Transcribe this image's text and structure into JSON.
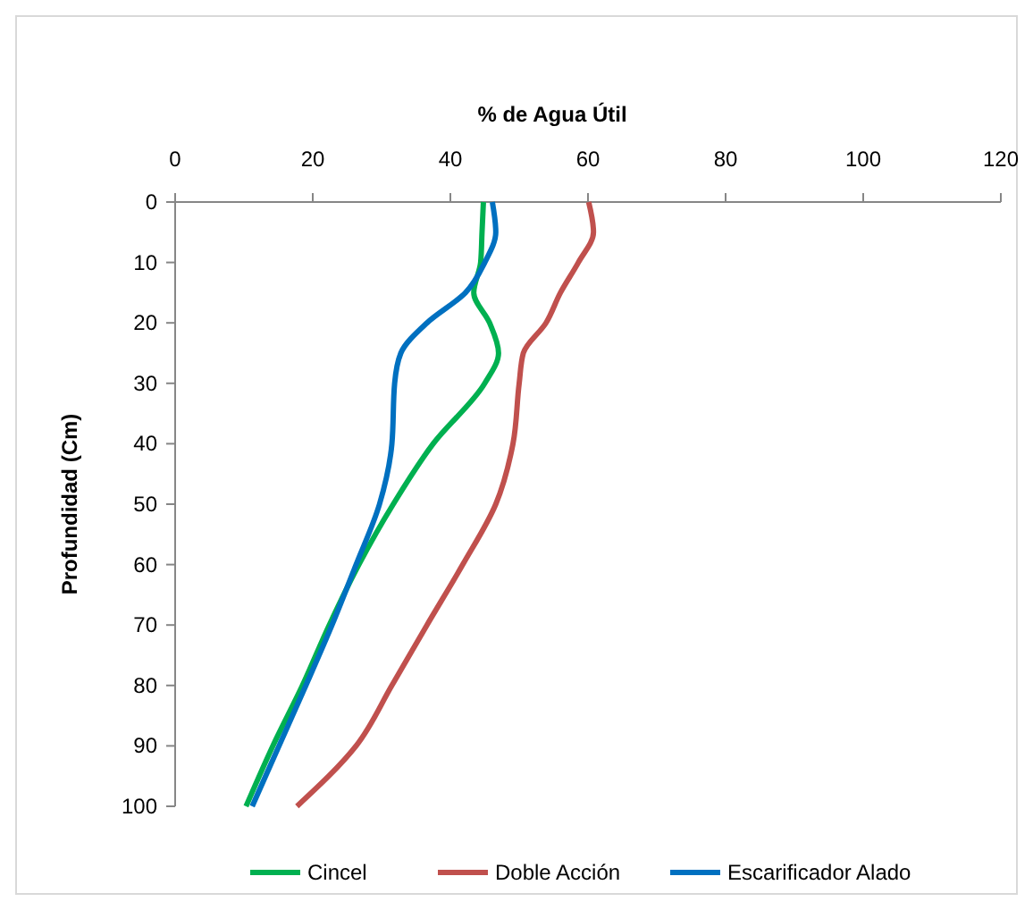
{
  "chart_data": {
    "type": "line",
    "orientation": "horizontal",
    "xlabel": "% de Agua Útil",
    "ylabel": "Profundidad (Cm)",
    "x": [
      0,
      5,
      10,
      15,
      20,
      25,
      30,
      40,
      50,
      60,
      70,
      80,
      90,
      100
    ],
    "series": [
      {
        "name": "Cincel",
        "color": "#00b050",
        "values": [
          44.8,
          44.6,
          44.4,
          43.4,
          45.7,
          47,
          45,
          37.5,
          31.7,
          26.7,
          22.4,
          18.5,
          14.2,
          10.3
        ]
      },
      {
        "name": "Doble Acción",
        "color": "#c0504d",
        "values": [
          60.1,
          60.8,
          58.6,
          56,
          53.9,
          50.6,
          50,
          49.1,
          46.6,
          41.8,
          36.6,
          31.5,
          26.3,
          17.7
        ]
      },
      {
        "name": "Escarificador Alado",
        "color": "#0070c0",
        "values": [
          46.1,
          46.6,
          45,
          42.2,
          36.6,
          32.8,
          31.9,
          31.5,
          29.7,
          26.3,
          22.8,
          19,
          15.1,
          11.2
        ]
      }
    ],
    "xlim": [
      0,
      120
    ],
    "xticks": [
      0,
      20,
      40,
      60,
      80,
      100,
      120
    ],
    "ylim": [
      100,
      0
    ],
    "yticks": [
      0,
      10,
      20,
      30,
      40,
      50,
      60,
      70,
      80,
      90,
      100
    ],
    "grid": false,
    "legend": "bottom",
    "marker": "none",
    "line_style": "solid"
  }
}
